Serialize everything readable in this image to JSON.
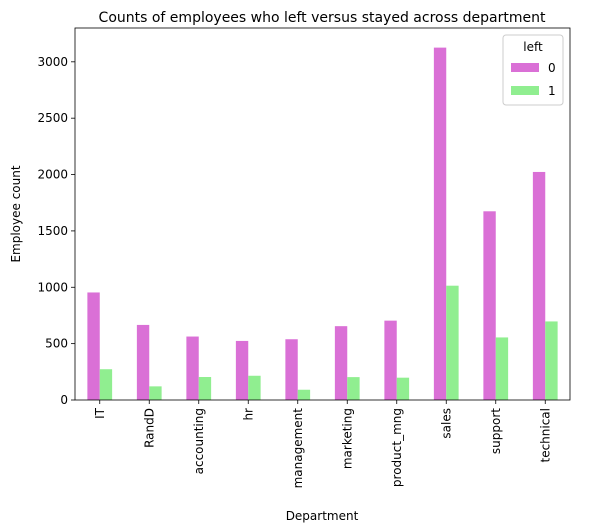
{
  "chart_data": {
    "type": "bar",
    "title": "Counts of employees who left versus stayed across department",
    "xlabel": "Department",
    "ylabel": "Employee count",
    "categories": [
      "IT",
      "RandD",
      "accounting",
      "hr",
      "management",
      "marketing",
      "product_mng",
      "sales",
      "support",
      "technical"
    ],
    "series": [
      {
        "name": "0",
        "color": "#da70d6",
        "values": [
          954,
          666,
          563,
          524,
          539,
          655,
          704,
          3126,
          1674,
          2023
        ]
      },
      {
        "name": "1",
        "color": "#90ee90",
        "values": [
          273,
          121,
          204,
          215,
          91,
          203,
          198,
          1014,
          555,
          697
        ]
      }
    ],
    "ylim": [
      0,
      3300
    ],
    "yticks": [
      0,
      500,
      1000,
      1500,
      2000,
      2500,
      3000
    ],
    "grid": false,
    "legend": {
      "title": "left",
      "placement": "upper-right"
    }
  }
}
